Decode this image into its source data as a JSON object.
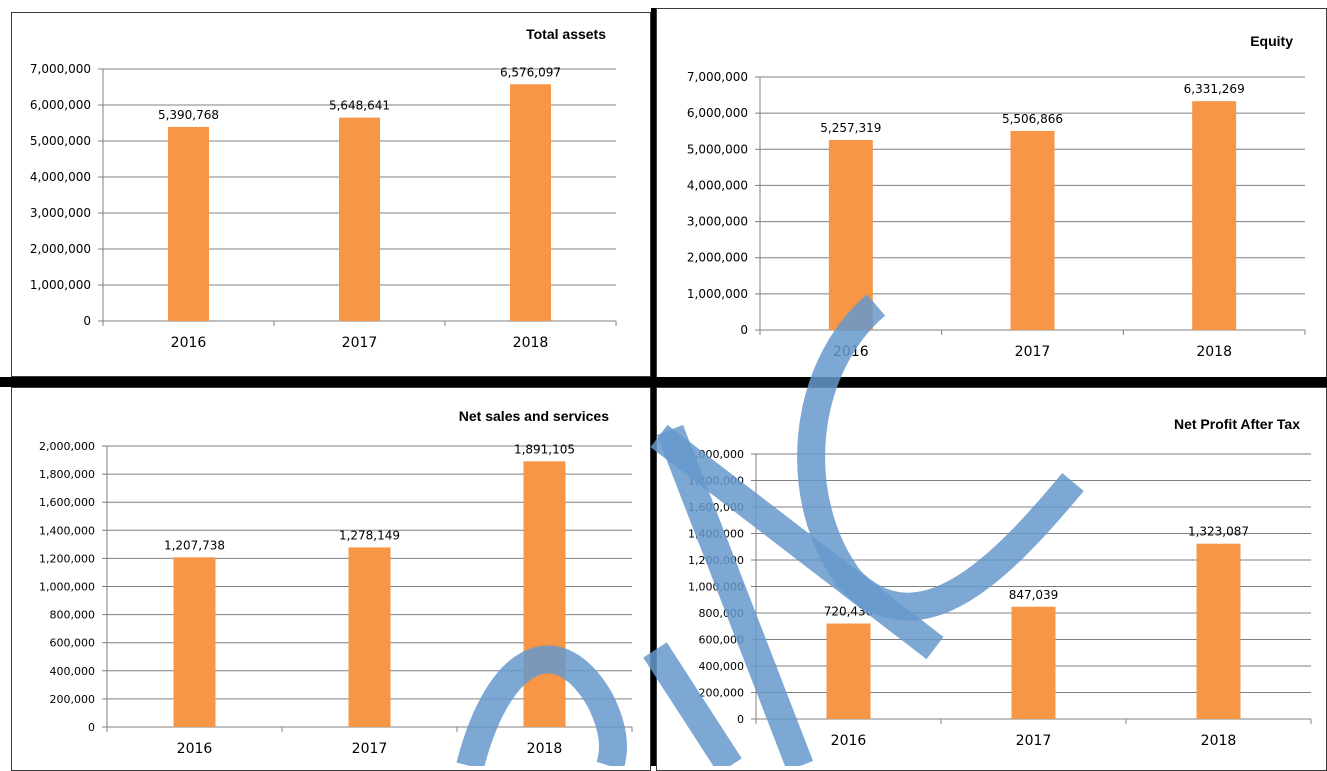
{
  "colors": {
    "bar": "#F79646",
    "grid": "#808080",
    "axis": "#808080",
    "text": "#000000",
    "watermark": "#6699CC"
  },
  "chart_data": [
    {
      "type": "bar",
      "title": "Total assets",
      "categories": [
        "2016",
        "2017",
        "2018"
      ],
      "values": [
        5390768,
        5648641,
        6576097
      ],
      "data_labels": [
        "5,390,768",
        "5,648,641",
        "6,576,097"
      ],
      "ylim": [
        0,
        7000000
      ],
      "yticks": [
        0,
        1000000,
        2000000,
        3000000,
        4000000,
        5000000,
        6000000,
        7000000
      ],
      "ytick_labels": [
        "0",
        "1,000,000",
        "2,000,000",
        "3,000,000",
        "4,000,000",
        "5,000,000",
        "6,000,000",
        "7,000,000"
      ],
      "xlabel": "",
      "ylabel": "",
      "grid": true,
      "legend": "none"
    },
    {
      "type": "bar",
      "title": "Equity",
      "categories": [
        "2016",
        "2017",
        "2018"
      ],
      "values": [
        5257319,
        5506866,
        6331269
      ],
      "data_labels": [
        "5,257,319",
        "5,506,866",
        "6,331,269"
      ],
      "ylim": [
        0,
        7000000
      ],
      "yticks": [
        0,
        1000000,
        2000000,
        3000000,
        4000000,
        5000000,
        6000000,
        7000000
      ],
      "ytick_labels": [
        "0",
        "1,000,000",
        "2,000,000",
        "3,000,000",
        "4,000,000",
        "5,000,000",
        "6,000,000",
        "7,000,000"
      ],
      "xlabel": "",
      "ylabel": "",
      "grid": true,
      "legend": "none"
    },
    {
      "type": "bar",
      "title": "Net sales and services",
      "categories": [
        "2016",
        "2017",
        "2018"
      ],
      "values": [
        1207738,
        1278149,
        1891105
      ],
      "data_labels": [
        "1,207,738",
        "1,278,149",
        "1,891,105"
      ],
      "ylim": [
        0,
        2000000
      ],
      "yticks": [
        0,
        200000,
        400000,
        600000,
        800000,
        1000000,
        1200000,
        1400000,
        1600000,
        1800000,
        2000000
      ],
      "ytick_labels": [
        "0",
        "200,000",
        "400,000",
        "600,000",
        "800,000",
        "1,000,000",
        "1,200,000",
        "1,400,000",
        "1,600,000",
        "1,800,000",
        "2,000,000"
      ],
      "xlabel": "",
      "ylabel": "",
      "grid": true,
      "legend": "none"
    },
    {
      "type": "bar",
      "title": "Net Profit After Tax",
      "categories": [
        "2016",
        "2017",
        "2018"
      ],
      "values": [
        720430,
        847039,
        1323087
      ],
      "data_labels": [
        "720,430",
        "847,039",
        "1,323,087"
      ],
      "ylim": [
        0,
        2000000
      ],
      "yticks": [
        0,
        200000,
        400000,
        600000,
        800000,
        1000000,
        1200000,
        1400000,
        1600000,
        1800000,
        2000000
      ],
      "ytick_labels": [
        "0",
        "200,000",
        "400,000",
        "600,000",
        "800,000",
        "1,000,000",
        "1,200,000",
        "1,400,000",
        "1,600,000",
        "1,800,000",
        "2,000,000"
      ],
      "xlabel": "",
      "ylabel": "",
      "grid": true,
      "legend": "none"
    }
  ]
}
